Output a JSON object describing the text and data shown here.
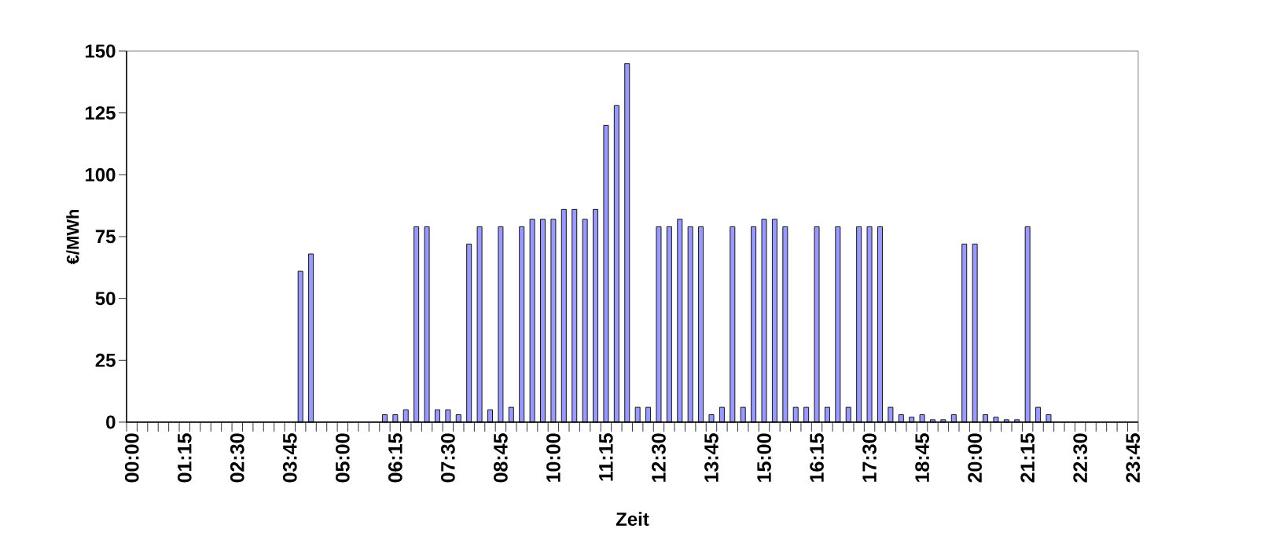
{
  "chart_data": {
    "type": "bar",
    "categories": [
      "00:00",
      null,
      null,
      null,
      null,
      "01:15",
      null,
      null,
      null,
      null,
      "02:30",
      null,
      null,
      null,
      null,
      "03:45",
      null,
      null,
      null,
      null,
      "05:00",
      null,
      null,
      null,
      null,
      "06:15",
      null,
      null,
      null,
      null,
      "07:30",
      null,
      null,
      null,
      null,
      "08:45",
      null,
      null,
      null,
      null,
      "10:00",
      null,
      null,
      null,
      null,
      "11:15",
      null,
      null,
      null,
      null,
      "12:30",
      null,
      null,
      null,
      null,
      "13:45",
      null,
      null,
      null,
      null,
      "15:00",
      null,
      null,
      null,
      null,
      "16:15",
      null,
      null,
      null,
      null,
      "17:30",
      null,
      null,
      null,
      null,
      "18:45",
      null,
      null,
      null,
      null,
      "20:00",
      null,
      null,
      null,
      null,
      "21:15",
      null,
      null,
      null,
      null,
      "22:30",
      null,
      null,
      null,
      null,
      "23:45"
    ],
    "values": [
      0,
      0,
      0,
      0,
      0,
      0,
      0,
      0,
      0,
      0,
      0,
      0,
      0,
      0,
      0,
      0,
      61,
      68,
      0,
      0,
      0,
      0,
      0,
      0,
      3,
      3,
      5,
      79,
      79,
      5,
      5,
      3,
      72,
      79,
      5,
      79,
      6,
      79,
      82,
      82,
      82,
      86,
      86,
      82,
      86,
      120,
      128,
      145,
      6,
      6,
      79,
      79,
      82,
      79,
      79,
      3,
      6,
      79,
      6,
      79,
      82,
      82,
      79,
      6,
      6,
      79,
      6,
      79,
      6,
      79,
      79,
      79,
      6,
      3,
      2,
      3,
      1,
      1,
      3,
      72,
      72,
      3,
      2,
      1,
      1,
      79,
      6,
      3,
      0,
      0,
      0,
      0,
      0,
      0,
      0,
      0
    ],
    "color": "#9999ff",
    "ylim": [
      0,
      150
    ],
    "yticks": [
      0,
      25,
      50,
      75,
      100,
      125,
      150
    ],
    "xlabel": "Zeit",
    "ylabel": "€/MWh"
  }
}
